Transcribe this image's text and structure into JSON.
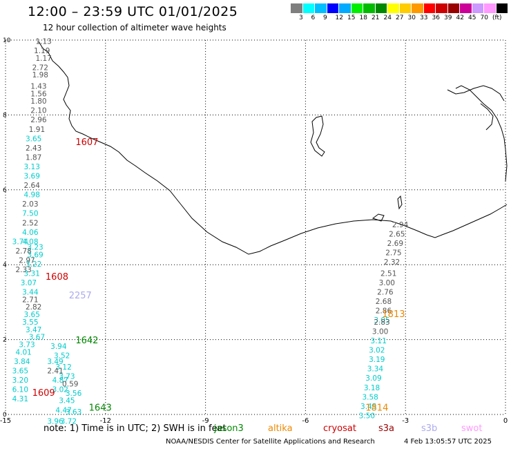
{
  "header": {
    "title": "12:00 – 23:59 UTC 01/01/2025",
    "subtitle": "12 hour collection of altimeter wave heights"
  },
  "legend": {
    "colors": [
      "#7f7f7f",
      "#00ffff",
      "#00bfff",
      "#0000ff",
      "#00aaff",
      "#00ee00",
      "#00bb00",
      "#008800",
      "#ffff00",
      "#ffcc00",
      "#ff9900",
      "#ff0000",
      "#cc0000",
      "#990000",
      "#cc0099",
      "#cc99ff",
      "#ff99ff",
      "#000000"
    ],
    "labels": [
      "3",
      "6",
      "9",
      "12",
      "15",
      "18",
      "21",
      "24",
      "27",
      "30",
      "33",
      "36",
      "39",
      "42",
      "45",
      "70",
      "(ft)"
    ]
  },
  "map": {
    "x_axis": {
      "ticks": [
        "-15",
        "-12",
        "-9",
        "-6",
        "-3",
        "0"
      ],
      "range": [
        -15,
        0
      ]
    },
    "y_axis": {
      "ticks": [
        "0",
        "2",
        "4",
        "6",
        "8",
        "10"
      ],
      "range": [
        0,
        10
      ]
    },
    "grid": "dotted"
  },
  "passes": [
    {
      "label": "1607",
      "color": "#cc0000",
      "x": -12.9,
      "y": 7.2
    },
    {
      "label": "1608",
      "color": "#cc0000",
      "x": -13.8,
      "y": 3.6
    },
    {
      "label": "1609",
      "color": "#cc0000",
      "x": -14.2,
      "y": 0.5
    },
    {
      "label": "2257",
      "color": "#aaaaee",
      "x": -13.1,
      "y": 3.1
    },
    {
      "label": "1642",
      "color": "#008800",
      "x": -12.9,
      "y": 1.9
    },
    {
      "label": "1643",
      "color": "#008800",
      "x": -12.5,
      "y": 0.1
    },
    {
      "label": "1813",
      "color": "#ee8800",
      "x": -3.7,
      "y": 2.6
    },
    {
      "label": "1814",
      "color": "#ee8800",
      "x": -4.2,
      "y": 0.1
    }
  ],
  "tracks": [
    {
      "color_default": "#555555",
      "points": [
        {
          "x": -14.1,
          "y": 9.9,
          "v": "1.13",
          "c": "#555555"
        },
        {
          "x": -14.15,
          "y": 9.65,
          "v": "1.19",
          "c": "#555555"
        },
        {
          "x": -14.1,
          "y": 9.45,
          "v": "1.17",
          "c": "#555555"
        },
        {
          "x": -14.2,
          "y": 9.2,
          "v": "2.72",
          "c": "#555555"
        },
        {
          "x": -14.2,
          "y": 9.0,
          "v": "1.98",
          "c": "#555555"
        },
        {
          "x": -14.25,
          "y": 8.7,
          "v": "1.43",
          "c": "#555555"
        },
        {
          "x": -14.25,
          "y": 8.5,
          "v": "1.56",
          "c": "#555555"
        },
        {
          "x": -14.25,
          "y": 8.3,
          "v": "1.80",
          "c": "#555555"
        },
        {
          "x": -14.25,
          "y": 8.05,
          "v": "2.10",
          "c": "#555555"
        },
        {
          "x": -14.25,
          "y": 7.8,
          "v": "2.96",
          "c": "#555555"
        },
        {
          "x": -14.3,
          "y": 7.55,
          "v": "1.91",
          "c": "#555555"
        },
        {
          "x": -14.4,
          "y": 7.3,
          "v": "3.65",
          "c": "#00cccc"
        },
        {
          "x": -14.4,
          "y": 7.05,
          "v": "2.43",
          "c": "#555555"
        },
        {
          "x": -14.4,
          "y": 6.8,
          "v": "1.87",
          "c": "#555555"
        },
        {
          "x": -14.45,
          "y": 6.55,
          "v": "3.13",
          "c": "#00cccc"
        },
        {
          "x": -14.45,
          "y": 6.3,
          "v": "3.69",
          "c": "#00cccc"
        },
        {
          "x": -14.45,
          "y": 6.05,
          "v": "2.64",
          "c": "#555555"
        },
        {
          "x": -14.45,
          "y": 5.8,
          "v": "4.98",
          "c": "#00cccc"
        },
        {
          "x": -14.5,
          "y": 5.55,
          "v": "2.03",
          "c": "#555555"
        },
        {
          "x": -14.5,
          "y": 5.3,
          "v": "7.50",
          "c": "#00cccc"
        },
        {
          "x": -14.5,
          "y": 5.05,
          "v": "2.52",
          "c": "#555555"
        },
        {
          "x": -14.5,
          "y": 4.8,
          "v": "4.06",
          "c": "#00cccc"
        },
        {
          "x": -14.5,
          "y": 4.55,
          "v": "4.08",
          "c": "#00cccc"
        },
        {
          "x": -14.8,
          "y": 4.55,
          "v": "3.74",
          "c": "#00cccc"
        },
        {
          "x": -14.7,
          "y": 4.3,
          "v": "2.78",
          "c": "#555555"
        },
        {
          "x": -14.6,
          "y": 4.05,
          "v": "2.97",
          "c": "#555555"
        },
        {
          "x": -14.7,
          "y": 3.8,
          "v": "2.33",
          "c": "#555555"
        },
        {
          "x": -14.35,
          "y": 4.4,
          "v": "3.23",
          "c": "#00cccc"
        },
        {
          "x": -14.35,
          "y": 4.2,
          "v": "3.69",
          "c": "#00cccc"
        },
        {
          "x": -14.4,
          "y": 3.95,
          "v": "3.22",
          "c": "#00cccc"
        },
        {
          "x": -14.45,
          "y": 3.7,
          "v": "3.31",
          "c": "#00cccc"
        },
        {
          "x": -14.55,
          "y": 3.45,
          "v": "3.07",
          "c": "#00cccc"
        },
        {
          "x": -14.5,
          "y": 3.2,
          "v": "3.44",
          "c": "#00cccc"
        },
        {
          "x": -14.5,
          "y": 3.0,
          "v": "2.71",
          "c": "#555555"
        },
        {
          "x": -14.4,
          "y": 2.8,
          "v": "2.82",
          "c": "#555555"
        },
        {
          "x": -14.45,
          "y": 2.6,
          "v": "3.65",
          "c": "#00cccc"
        },
        {
          "x": -14.5,
          "y": 2.4,
          "v": "3.55",
          "c": "#00cccc"
        },
        {
          "x": -14.4,
          "y": 2.2,
          "v": "3.47",
          "c": "#00cccc"
        },
        {
          "x": -14.3,
          "y": 2.0,
          "v": "3.67",
          "c": "#00cccc"
        },
        {
          "x": -14.6,
          "y": 1.8,
          "v": "3.73",
          "c": "#00cccc"
        },
        {
          "x": -14.7,
          "y": 1.6,
          "v": "4.01",
          "c": "#00cccc"
        },
        {
          "x": -14.75,
          "y": 1.35,
          "v": "3.84",
          "c": "#00cccc"
        },
        {
          "x": -14.8,
          "y": 1.1,
          "v": "3.65",
          "c": "#00cccc"
        },
        {
          "x": -14.8,
          "y": 0.85,
          "v": "3.20",
          "c": "#00cccc"
        },
        {
          "x": -14.8,
          "y": 0.6,
          "v": "6.10",
          "c": "#00cccc"
        },
        {
          "x": -14.8,
          "y": 0.35,
          "v": "4.31",
          "c": "#00cccc"
        },
        {
          "x": -13.65,
          "y": 1.75,
          "v": "3.94",
          "c": "#00cccc"
        },
        {
          "x": -13.55,
          "y": 1.5,
          "v": "3.52",
          "c": "#00cccc"
        },
        {
          "x": -13.75,
          "y": 1.35,
          "v": "3.49",
          "c": "#00cccc"
        },
        {
          "x": -13.5,
          "y": 1.2,
          "v": "3.12",
          "c": "#00cccc"
        },
        {
          "x": -13.75,
          "y": 1.1,
          "v": "2.41",
          "c": "#555555"
        },
        {
          "x": -13.4,
          "y": 0.95,
          "v": "3.73",
          "c": "#00cccc"
        },
        {
          "x": -13.6,
          "y": 0.85,
          "v": "4.87",
          "c": "#00cccc"
        },
        {
          "x": -13.3,
          "y": 0.75,
          "v": "0.59",
          "c": "#555555"
        },
        {
          "x": -13.6,
          "y": 0.6,
          "v": "3.02",
          "c": "#00cccc"
        },
        {
          "x": -13.2,
          "y": 0.5,
          "v": "3.56",
          "c": "#00cccc"
        },
        {
          "x": -13.4,
          "y": 0.3,
          "v": "3.45",
          "c": "#00cccc"
        },
        {
          "x": -13.5,
          "y": 0.05,
          "v": "4.47",
          "c": "#00cccc"
        },
        {
          "x": -13.2,
          "y": 0.0,
          "v": "3.63",
          "c": "#00cccc"
        },
        {
          "x": -13.75,
          "y": -0.25,
          "v": "3.96",
          "c": "#00cccc"
        },
        {
          "x": -13.35,
          "y": -0.25,
          "v": "3.72",
          "c": "#00cccc"
        },
        {
          "x": -3.4,
          "y": 5.0,
          "v": "2.94",
          "c": "#555555"
        },
        {
          "x": -3.5,
          "y": 4.75,
          "v": "2.65",
          "c": "#555555"
        },
        {
          "x": -3.55,
          "y": 4.5,
          "v": "2.69",
          "c": "#555555"
        },
        {
          "x": -3.6,
          "y": 4.25,
          "v": "2.75",
          "c": "#555555"
        },
        {
          "x": -3.65,
          "y": 4.0,
          "v": "2.32",
          "c": "#555555"
        },
        {
          "x": -3.75,
          "y": 3.7,
          "v": "2.51",
          "c": "#555555"
        },
        {
          "x": -3.8,
          "y": 3.45,
          "v": "3.00",
          "c": "#555555"
        },
        {
          "x": -3.85,
          "y": 3.2,
          "v": "2.76",
          "c": "#555555"
        },
        {
          "x": -3.9,
          "y": 2.95,
          "v": "2.68",
          "c": "#555555"
        },
        {
          "x": -3.9,
          "y": 2.7,
          "v": "2.86",
          "c": "#555555"
        },
        {
          "x": -3.95,
          "y": 2.45,
          "v": "3.05",
          "c": "#00cccc"
        },
        {
          "x": -3.95,
          "y": 2.4,
          "v": "2.83",
          "c": "#555555"
        },
        {
          "x": -4.0,
          "y": 2.15,
          "v": "3.00",
          "c": "#555555"
        },
        {
          "x": -4.05,
          "y": 1.9,
          "v": "3.11",
          "c": "#00cccc"
        },
        {
          "x": -4.1,
          "y": 1.65,
          "v": "3.02",
          "c": "#00cccc"
        },
        {
          "x": -4.1,
          "y": 1.4,
          "v": "3.19",
          "c": "#00cccc"
        },
        {
          "x": -4.15,
          "y": 1.15,
          "v": "3.34",
          "c": "#00cccc"
        },
        {
          "x": -4.2,
          "y": 0.9,
          "v": "3.09",
          "c": "#00cccc"
        },
        {
          "x": -4.25,
          "y": 0.65,
          "v": "3.18",
          "c": "#00cccc"
        },
        {
          "x": -4.3,
          "y": 0.4,
          "v": "3.58",
          "c": "#00cccc"
        },
        {
          "x": -4.35,
          "y": 0.15,
          "v": "3.45",
          "c": "#00cccc"
        },
        {
          "x": -4.4,
          "y": -0.1,
          "v": "3.50",
          "c": "#00cccc"
        }
      ]
    }
  ],
  "footer": {
    "note": "note:  1) Time is in UTC; 2) SWH is in feet",
    "satellites": [
      {
        "name": "jason3",
        "color": "#008800"
      },
      {
        "name": "altika",
        "color": "#ee8800"
      },
      {
        "name": "cryosat",
        "color": "#cc0000"
      },
      {
        "name": "s3a",
        "color": "#990000"
      },
      {
        "name": "s3b",
        "color": "#aaaaee"
      },
      {
        "name": "swot",
        "color": "#ff99ff"
      }
    ],
    "credit": "NOAA/NESDIS Center for Satellite Applications and Research",
    "timestamp": "4 Feb 13:05:57 UTC 2025"
  }
}
